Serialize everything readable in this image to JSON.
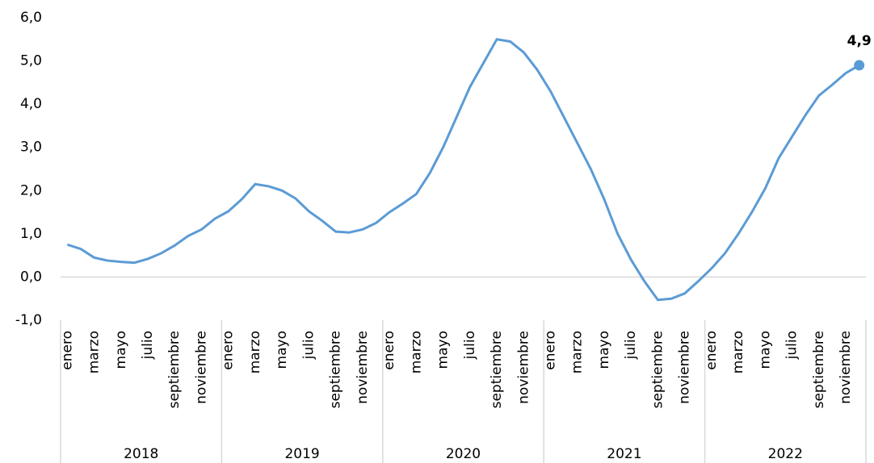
{
  "chart_data": {
    "type": "line",
    "categories": [
      "enero",
      null,
      "marzo",
      null,
      "mayo",
      null,
      "julio",
      null,
      "septiembre",
      null,
      "noviembre",
      null,
      "enero",
      null,
      "marzo",
      null,
      "mayo",
      null,
      "julio",
      null,
      "septiembre",
      null,
      "noviembre",
      null,
      "enero",
      null,
      "marzo",
      null,
      "mayo",
      null,
      "julio",
      null,
      "septiembre",
      null,
      "noviembre",
      null,
      "enero",
      null,
      "marzo",
      null,
      "mayo",
      null,
      "julio",
      null,
      "septiembre",
      null,
      "noviembre",
      null,
      "enero",
      null,
      "marzo",
      null,
      "mayo",
      null,
      "julio",
      null,
      "septiembre",
      null,
      "noviembre",
      null
    ],
    "groups": [
      "2018",
      "2019",
      "2020",
      "2021",
      "2022"
    ],
    "series": [
      {
        "color": "#5b9bd5",
        "values": [
          0.75,
          0.65,
          0.45,
          0.38,
          0.35,
          0.33,
          0.42,
          0.55,
          0.73,
          0.95,
          1.1,
          1.35,
          1.52,
          1.8,
          2.15,
          2.1,
          2.0,
          1.82,
          1.52,
          1.3,
          1.05,
          1.03,
          1.1,
          1.25,
          1.5,
          1.7,
          1.92,
          2.4,
          3.0,
          3.7,
          4.4,
          4.95,
          5.5,
          5.45,
          5.2,
          4.8,
          4.3,
          3.7,
          3.1,
          2.5,
          1.8,
          1.0,
          0.4,
          -0.1,
          -0.53,
          -0.5,
          -0.38,
          -0.1,
          0.2,
          0.55,
          1.0,
          1.5,
          2.05,
          2.75,
          3.25,
          3.75,
          4.2,
          4.45,
          4.72,
          4.9
        ],
        "value_labels": {
          "59": "4,9"
        }
      }
    ],
    "ylim": [
      -1,
      6
    ],
    "yticks": [
      {
        "value": -1,
        "label": "-1,0"
      },
      {
        "value": 0,
        "label": "0,0"
      },
      {
        "value": 1,
        "label": "1,0"
      },
      {
        "value": 2,
        "label": "2,0"
      },
      {
        "value": 3,
        "label": "3,0"
      },
      {
        "value": 4,
        "label": "4,0"
      },
      {
        "value": 5,
        "label": "5,0"
      },
      {
        "value": 6,
        "label": "6,0"
      }
    ],
    "grid": false
  }
}
